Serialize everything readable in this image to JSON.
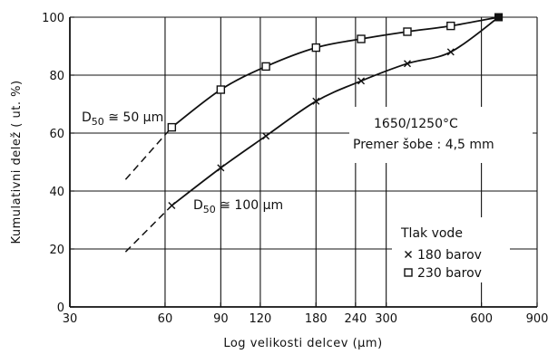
{
  "chart_data": {
    "type": "line",
    "xscale": "log",
    "xlim": [
      30,
      900
    ],
    "ylim": [
      0,
      100
    ],
    "xlabel": "Log velikosti delcev (µm)",
    "ylabel": "Kumulativni delež ( ut. %)",
    "x_ticks": [
      30,
      60,
      90,
      120,
      180,
      240,
      300,
      600,
      900
    ],
    "y_ticks": [
      0,
      20,
      40,
      60,
      80,
      100
    ],
    "x_gridlines": [
      60,
      90,
      120,
      180,
      240,
      300,
      600,
      900
    ],
    "y_gridlines": [
      20,
      40,
      60,
      80,
      100
    ],
    "grid": true,
    "series": [
      {
        "name": "230 barov",
        "marker": "square",
        "color": "#111111",
        "x": [
          63,
          90,
          125,
          180,
          250,
          350,
          480,
          680
        ],
        "y": [
          62,
          75,
          83,
          89.5,
          92.5,
          95,
          97,
          100
        ],
        "extrapolation": {
          "x": [
            45,
            63
          ],
          "y": [
            44,
            62
          ]
        }
      },
      {
        "name": "180 barov",
        "marker": "x",
        "color": "#111111",
        "x": [
          63,
          90,
          125,
          180,
          250,
          350,
          480,
          680
        ],
        "y": [
          35,
          48,
          59,
          71,
          78,
          84,
          88,
          100
        ],
        "extrapolation": {
          "x": [
            45,
            63
          ],
          "y": [
            19,
            35
          ]
        }
      }
    ],
    "annotations": [
      {
        "text": "D50 ≅ 50 µm",
        "sub": "50",
        "prefix": "D",
        "suffix": " ≅ 50 µm"
      },
      {
        "text": "D50 ≅ 100 µm",
        "sub": "50",
        "prefix": "D",
        "suffix": " ≅ 100 µm"
      },
      {
        "text": "1650/1250°C"
      },
      {
        "text": "Premer šobe : 4,5 mm"
      }
    ],
    "legend": {
      "title": "Tlak vode",
      "placement": "bottom-right",
      "items": [
        {
          "marker": "x",
          "label": "180 barov"
        },
        {
          "marker": "square",
          "label": "230 barov"
        }
      ]
    }
  }
}
